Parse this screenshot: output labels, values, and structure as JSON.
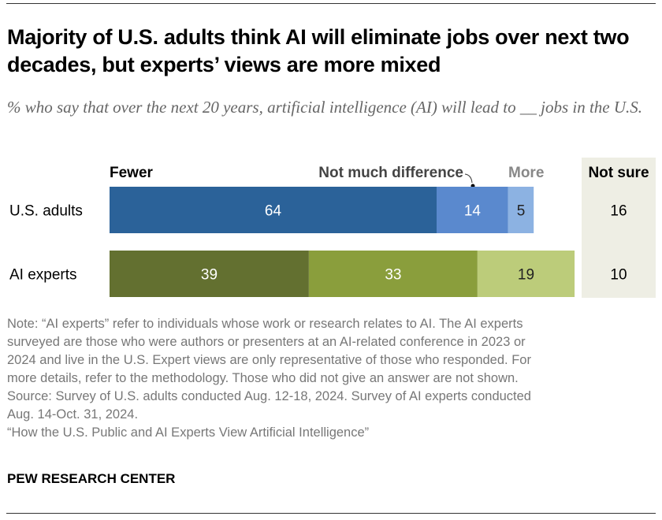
{
  "title": "Majority of U.S. adults think AI will eliminate jobs over next two decades, but experts’ views are more mixed",
  "subtitle": "% who say that over the next 20 years, artificial intelligence (AI) will lead to __ jobs in the U.S.",
  "chart_data": {
    "type": "bar",
    "orientation": "horizontal-stacked",
    "categories": [
      "U.S. adults",
      "AI experts"
    ],
    "series": [
      {
        "name": "Fewer",
        "values": [
          64,
          39
        ],
        "colors": [
          "#2b6299",
          "#637030"
        ],
        "label_colors": [
          "#ffffff",
          "#ffffff"
        ]
      },
      {
        "name": "Not much difference",
        "values": [
          14,
          33
        ],
        "colors": [
          "#5a89ce",
          "#8a9e3c"
        ],
        "label_colors": [
          "#ffffff",
          "#ffffff"
        ]
      },
      {
        "name": "More",
        "values": [
          5,
          19
        ],
        "colors": [
          "#8cb2e2",
          "#bccc7a"
        ],
        "label_colors": [
          "#222222",
          "#222222"
        ]
      }
    ],
    "not_sure": {
      "name": "Not sure",
      "values": [
        16,
        10
      ]
    },
    "header_colors": {
      "Fewer": "#000000",
      "Not much difference": "#444444",
      "More": "#888888",
      "Not sure": "#000000"
    },
    "not_sure_background": "#eeeee4"
  },
  "notes": [
    "Note: “AI experts” refer to individuals whose work or research relates to AI. The AI experts",
    "surveyed are those who were authors or presenters at an AI-related conference in 2023 or",
    "2024 and live in the U.S. Expert views are only representative of those who responded. For",
    "more details, refer to the methodology. Those who did not give an answer are not shown.",
    "Source: Survey of U.S. adults conducted Aug. 12-18, 2024. Survey of AI experts conducted",
    "Aug. 14-Oct. 31, 2024.",
    "“How the U.S. Public and AI Experts View Artificial Intelligence”"
  ],
  "brand": "PEW RESEARCH CENTER"
}
